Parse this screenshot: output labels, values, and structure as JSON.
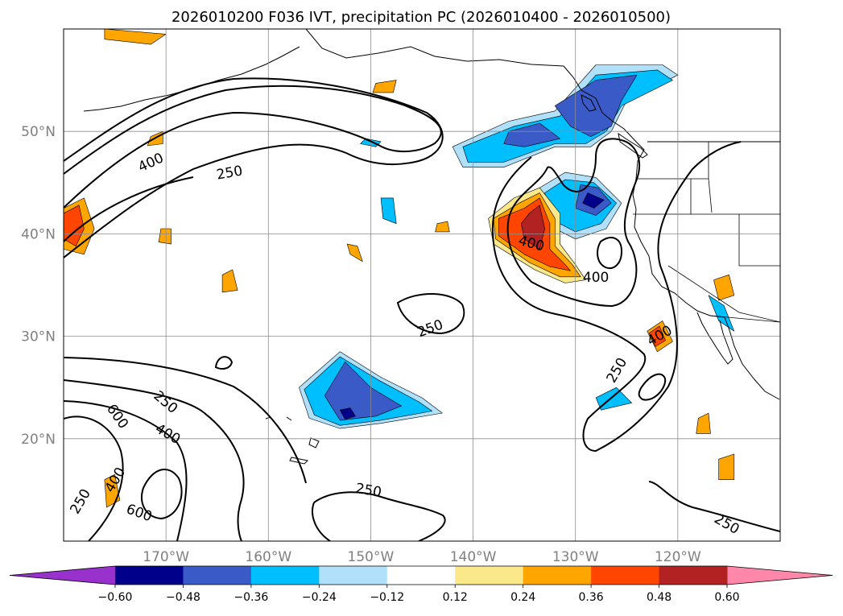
{
  "figure": {
    "title": "2026010200 F036 IVT, precipitation PC (2026010400 - 2026010500)"
  },
  "map": {
    "projection": "PlateCarree",
    "lon_range": [
      -180,
      -110
    ],
    "lat_range": [
      10,
      60
    ],
    "gridlines": true,
    "lon_ticks": [
      {
        "value": -170,
        "label": "170°W"
      },
      {
        "value": -160,
        "label": "160°W"
      },
      {
        "value": -150,
        "label": "150°W"
      },
      {
        "value": -140,
        "label": "140°W"
      },
      {
        "value": -130,
        "label": "130°W"
      },
      {
        "value": -120,
        "label": "120°W"
      }
    ],
    "lat_ticks": [
      {
        "value": 50,
        "label": "50°N"
      },
      {
        "value": 40,
        "label": "40°N"
      },
      {
        "value": 30,
        "label": "30°N"
      },
      {
        "value": 20,
        "label": "20°N"
      }
    ],
    "ivt_contour_labels": [
      {
        "text": "400",
        "lon": -171.5,
        "lat": 47.0,
        "rot": -25
      },
      {
        "text": "250",
        "lon": -163.8,
        "lat": 46.0,
        "rot": -10
      },
      {
        "text": "400",
        "lon": -134.3,
        "lat": 39.1,
        "rot": 15
      },
      {
        "text": "400",
        "lon": -128.0,
        "lat": 35.8,
        "rot": 0
      },
      {
        "text": "250",
        "lon": -144.2,
        "lat": 30.8,
        "rot": -20
      },
      {
        "text": "400",
        "lon": -121.8,
        "lat": 30.1,
        "rot": -30
      },
      {
        "text": "250",
        "lon": -126.0,
        "lat": 26.7,
        "rot": -60
      },
      {
        "text": "250",
        "lon": -170.0,
        "lat": 23.6,
        "rot": 40
      },
      {
        "text": "600",
        "lon": -174.7,
        "lat": 22.2,
        "rot": 55
      },
      {
        "text": "400",
        "lon": -169.8,
        "lat": 20.5,
        "rot": 30
      },
      {
        "text": "400",
        "lon": -175.0,
        "lat": 16.0,
        "rot": -60
      },
      {
        "text": "250",
        "lon": -178.4,
        "lat": 13.9,
        "rot": -60
      },
      {
        "text": "600",
        "lon": -172.6,
        "lat": 12.8,
        "rot": 20
      },
      {
        "text": "250",
        "lon": -150.2,
        "lat": 15.0,
        "rot": 10
      },
      {
        "text": "250",
        "lon": -115.2,
        "lat": 11.7,
        "rot": 30
      }
    ],
    "precip_pc_areas": [
      {
        "level": -0.12,
        "pts": [
          [
            -136.5,
            51
          ],
          [
            -132,
            52
          ],
          [
            -128,
            56.5
          ],
          [
            -121.5,
            56.5
          ],
          [
            -120,
            55.5
          ],
          [
            -125,
            53
          ],
          [
            -126.5,
            50
          ],
          [
            -128.5,
            48.5
          ],
          [
            -132,
            48.5
          ],
          [
            -137,
            46.5
          ],
          [
            -141,
            46.5
          ],
          [
            -142,
            48.5
          ]
        ]
      },
      {
        "level": -0.24,
        "pts": [
          [
            -136,
            50.5
          ],
          [
            -131.5,
            51.5
          ],
          [
            -128,
            55.5
          ],
          [
            -122,
            56
          ],
          [
            -120.5,
            55
          ],
          [
            -125.5,
            52.5
          ],
          [
            -127,
            50
          ],
          [
            -129,
            48.8
          ],
          [
            -132,
            48.8
          ],
          [
            -137,
            47
          ],
          [
            -140.5,
            47
          ],
          [
            -141,
            48.5
          ]
        ]
      },
      {
        "level": -0.36,
        "pts": [
          [
            -132,
            52.5
          ],
          [
            -128,
            55
          ],
          [
            -124,
            55.5
          ],
          [
            -125.5,
            53
          ],
          [
            -126.5,
            50.5
          ],
          [
            -128.5,
            49.5
          ],
          [
            -130.5,
            50.5
          ]
        ]
      },
      {
        "level": -0.36,
        "pts": [
          [
            -136.5,
            50
          ],
          [
            -133.5,
            50.8
          ],
          [
            -131.5,
            49.3
          ],
          [
            -135,
            48.5
          ],
          [
            -137,
            48.8
          ]
        ]
      },
      {
        "level": -0.12,
        "pts": [
          [
            -133.5,
            44.5
          ],
          [
            -131,
            46
          ],
          [
            -128,
            45.5
          ],
          [
            -125.5,
            43
          ],
          [
            -127,
            40.5
          ],
          [
            -130,
            39.5
          ],
          [
            -133,
            41
          ]
        ]
      },
      {
        "level": -0.24,
        "pts": [
          [
            -133,
            44
          ],
          [
            -131,
            45.3
          ],
          [
            -128.2,
            45
          ],
          [
            -126,
            43
          ],
          [
            -127.5,
            41
          ],
          [
            -130,
            40.2
          ],
          [
            -132.5,
            41.5
          ]
        ]
      },
      {
        "level": -0.36,
        "pts": [
          [
            -129.5,
            44.8
          ],
          [
            -127.8,
            44.5
          ],
          [
            -126.5,
            43
          ],
          [
            -128,
            41.8
          ],
          [
            -130,
            42.5
          ]
        ]
      },
      {
        "level": -0.48,
        "pts": [
          [
            -128.8,
            44
          ],
          [
            -127.2,
            43.3
          ],
          [
            -128.2,
            42.5
          ],
          [
            -129.3,
            43
          ]
        ]
      },
      {
        "level": -0.12,
        "pts": [
          [
            -157,
            25
          ],
          [
            -153,
            28.5
          ],
          [
            -149,
            26
          ],
          [
            -145,
            24
          ],
          [
            -143,
            22.5
          ],
          [
            -149,
            21.5
          ],
          [
            -153,
            21
          ],
          [
            -156,
            22
          ]
        ]
      },
      {
        "level": -0.24,
        "pts": [
          [
            -156.5,
            24.8
          ],
          [
            -153,
            28
          ],
          [
            -149.2,
            25.7
          ],
          [
            -145.3,
            23.6
          ],
          [
            -144,
            22.7
          ],
          [
            -149,
            21.8
          ],
          [
            -153,
            21.3
          ],
          [
            -155.5,
            22.3
          ]
        ]
      },
      {
        "level": -0.36,
        "pts": [
          [
            -154.5,
            24.2
          ],
          [
            -152.5,
            27.5
          ],
          [
            -150,
            25
          ],
          [
            -147,
            23.2
          ],
          [
            -149.5,
            22.2
          ],
          [
            -153,
            21.8
          ]
        ]
      },
      {
        "level": -0.48,
        "pts": [
          [
            -153,
            22.8
          ],
          [
            -152,
            23
          ],
          [
            -151.5,
            22.2
          ],
          [
            -152.5,
            21.9
          ]
        ]
      },
      {
        "level": -0.24,
        "pts": [
          [
            -128,
            24
          ],
          [
            -126,
            25
          ],
          [
            -124.5,
            23.5
          ],
          [
            -127.5,
            22.8
          ]
        ]
      },
      {
        "level": -0.24,
        "pts": [
          [
            -117,
            34
          ],
          [
            -115.5,
            33
          ],
          [
            -114.5,
            30.5
          ],
          [
            -116,
            31.5
          ]
        ]
      },
      {
        "level": -0.24,
        "pts": [
          [
            -149,
            43.5
          ],
          [
            -147.8,
            43.5
          ],
          [
            -147.5,
            41
          ],
          [
            -148.8,
            41.5
          ]
        ]
      },
      {
        "level": -0.24,
        "pts": [
          [
            -150.5,
            49.3
          ],
          [
            -149,
            49
          ],
          [
            -149.5,
            48.5
          ],
          [
            -151,
            48.8
          ]
        ]
      },
      {
        "level": 0.12,
        "pts": [
          [
            -136,
            43.5
          ],
          [
            -133.5,
            44.5
          ],
          [
            -131.5,
            42
          ],
          [
            -131.5,
            39
          ],
          [
            -130,
            37
          ],
          [
            -129,
            35.5
          ],
          [
            -131,
            35.2
          ],
          [
            -134,
            36.5
          ],
          [
            -138,
            39
          ],
          [
            -138.5,
            41.5
          ]
        ]
      },
      {
        "level": 0.24,
        "pts": [
          [
            -135.5,
            43
          ],
          [
            -133.5,
            44
          ],
          [
            -132,
            41.5
          ],
          [
            -132,
            38.8
          ],
          [
            -130.3,
            37
          ],
          [
            -129.5,
            35.8
          ],
          [
            -131.5,
            35.8
          ],
          [
            -134.5,
            37.2
          ],
          [
            -137.8,
            39.5
          ],
          [
            -138,
            41.5
          ]
        ]
      },
      {
        "level": 0.36,
        "pts": [
          [
            -135,
            42.5
          ],
          [
            -133.5,
            43.5
          ],
          [
            -132.5,
            41
          ],
          [
            -132.5,
            38.5
          ],
          [
            -131,
            37
          ],
          [
            -130.5,
            36.4
          ],
          [
            -132.5,
            36.8
          ],
          [
            -135,
            38
          ],
          [
            -137.5,
            39.8
          ],
          [
            -137.5,
            41.5
          ]
        ]
      },
      {
        "level": 0.48,
        "pts": [
          [
            -134.5,
            42
          ],
          [
            -133.5,
            42.8
          ],
          [
            -133,
            40.5
          ],
          [
            -133.5,
            38.5
          ],
          [
            -135,
            39.5
          ],
          [
            -135.3,
            41
          ]
        ]
      },
      {
        "level": 0.24,
        "pts": [
          [
            -180,
            42.5
          ],
          [
            -178,
            43.5
          ],
          [
            -177,
            40.5
          ],
          [
            -178,
            38
          ],
          [
            -180,
            38.5
          ]
        ]
      },
      {
        "level": 0.36,
        "pts": [
          [
            -180,
            42
          ],
          [
            -178.5,
            42.8
          ],
          [
            -178,
            40.5
          ],
          [
            -178.8,
            38.8
          ],
          [
            -180,
            39.5
          ]
        ]
      },
      {
        "level": 0.24,
        "pts": [
          [
            -123,
            30.5
          ],
          [
            -121.5,
            31.5
          ],
          [
            -120.5,
            29.5
          ],
          [
            -122,
            28.5
          ]
        ]
      },
      {
        "level": 0.36,
        "pts": [
          [
            -122.8,
            30.3
          ],
          [
            -121.8,
            31
          ],
          [
            -121.2,
            29.6
          ],
          [
            -122.2,
            29
          ]
        ]
      },
      {
        "level": 0.24,
        "pts": [
          [
            -116.5,
            35.5
          ],
          [
            -115,
            36
          ],
          [
            -114.5,
            34
          ],
          [
            -116,
            33.5
          ]
        ]
      },
      {
        "level": 0.24,
        "pts": [
          [
            -176,
            60
          ],
          [
            -170,
            59.5
          ],
          [
            -171.5,
            58.5
          ],
          [
            -176,
            59
          ]
        ]
      },
      {
        "level": 0.24,
        "pts": [
          [
            -164.5,
            36
          ],
          [
            -163.5,
            36.5
          ],
          [
            -163,
            34.5
          ],
          [
            -164.5,
            34.3
          ]
        ]
      },
      {
        "level": 0.24,
        "pts": [
          [
            -170.5,
            40.5
          ],
          [
            -169.5,
            40.5
          ],
          [
            -169.5,
            39
          ],
          [
            -170.7,
            39.2
          ]
        ]
      },
      {
        "level": 0.24,
        "pts": [
          [
            -152.3,
            39
          ],
          [
            -151.3,
            38.8
          ],
          [
            -150.8,
            37.3
          ],
          [
            -152,
            38
          ]
        ]
      },
      {
        "level": 0.24,
        "pts": [
          [
            -171.5,
            49.5
          ],
          [
            -170.3,
            50
          ],
          [
            -170.3,
            48.8
          ],
          [
            -171.8,
            48.6
          ]
        ]
      },
      {
        "level": 0.24,
        "pts": [
          [
            -149.5,
            54.7
          ],
          [
            -147.5,
            55
          ],
          [
            -147.8,
            53.8
          ],
          [
            -149.8,
            53.8
          ]
        ]
      },
      {
        "level": 0.24,
        "pts": [
          [
            -116,
            18
          ],
          [
            -114.5,
            18.5
          ],
          [
            -114.5,
            16
          ],
          [
            -116,
            16
          ]
        ]
      },
      {
        "level": 0.24,
        "pts": [
          [
            -118,
            22
          ],
          [
            -117,
            22.5
          ],
          [
            -116.8,
            20.5
          ],
          [
            -118.2,
            20.5
          ]
        ]
      },
      {
        "level": 0.24,
        "pts": [
          [
            -176,
            16
          ],
          [
            -175,
            16.5
          ],
          [
            -174.5,
            14
          ],
          [
            -175.8,
            13.3
          ]
        ]
      },
      {
        "level": 0.24,
        "pts": [
          [
            -143.5,
            41
          ],
          [
            -142.5,
            41.2
          ],
          [
            -142.3,
            40.2
          ],
          [
            -143.7,
            40.2
          ]
        ]
      }
    ]
  },
  "colorbar": {
    "ticks": [
      "−0.60",
      "−0.48",
      "−0.36",
      "−0.24",
      "−0.12",
      "0.12",
      "0.24",
      "0.36",
      "0.48",
      "0.60"
    ],
    "under_color": "#9932cc",
    "over_color": "#ff88aa",
    "segments": [
      {
        "from": -0.6,
        "to": -0.48,
        "color": "#00008b"
      },
      {
        "from": -0.48,
        "to": -0.36,
        "color": "#3a5ac8"
      },
      {
        "from": -0.36,
        "to": -0.24,
        "color": "#00bfff"
      },
      {
        "from": -0.24,
        "to": -0.12,
        "color": "#b0e0fa"
      },
      {
        "from": -0.12,
        "to": 0.12,
        "color": "#ffffff"
      },
      {
        "from": 0.12,
        "to": 0.24,
        "color": "#fbe88a"
      },
      {
        "from": 0.24,
        "to": 0.36,
        "color": "#ffa500"
      },
      {
        "from": 0.36,
        "to": 0.48,
        "color": "#ff4500"
      },
      {
        "from": 0.48,
        "to": 0.6,
        "color": "#b22222"
      }
    ]
  }
}
